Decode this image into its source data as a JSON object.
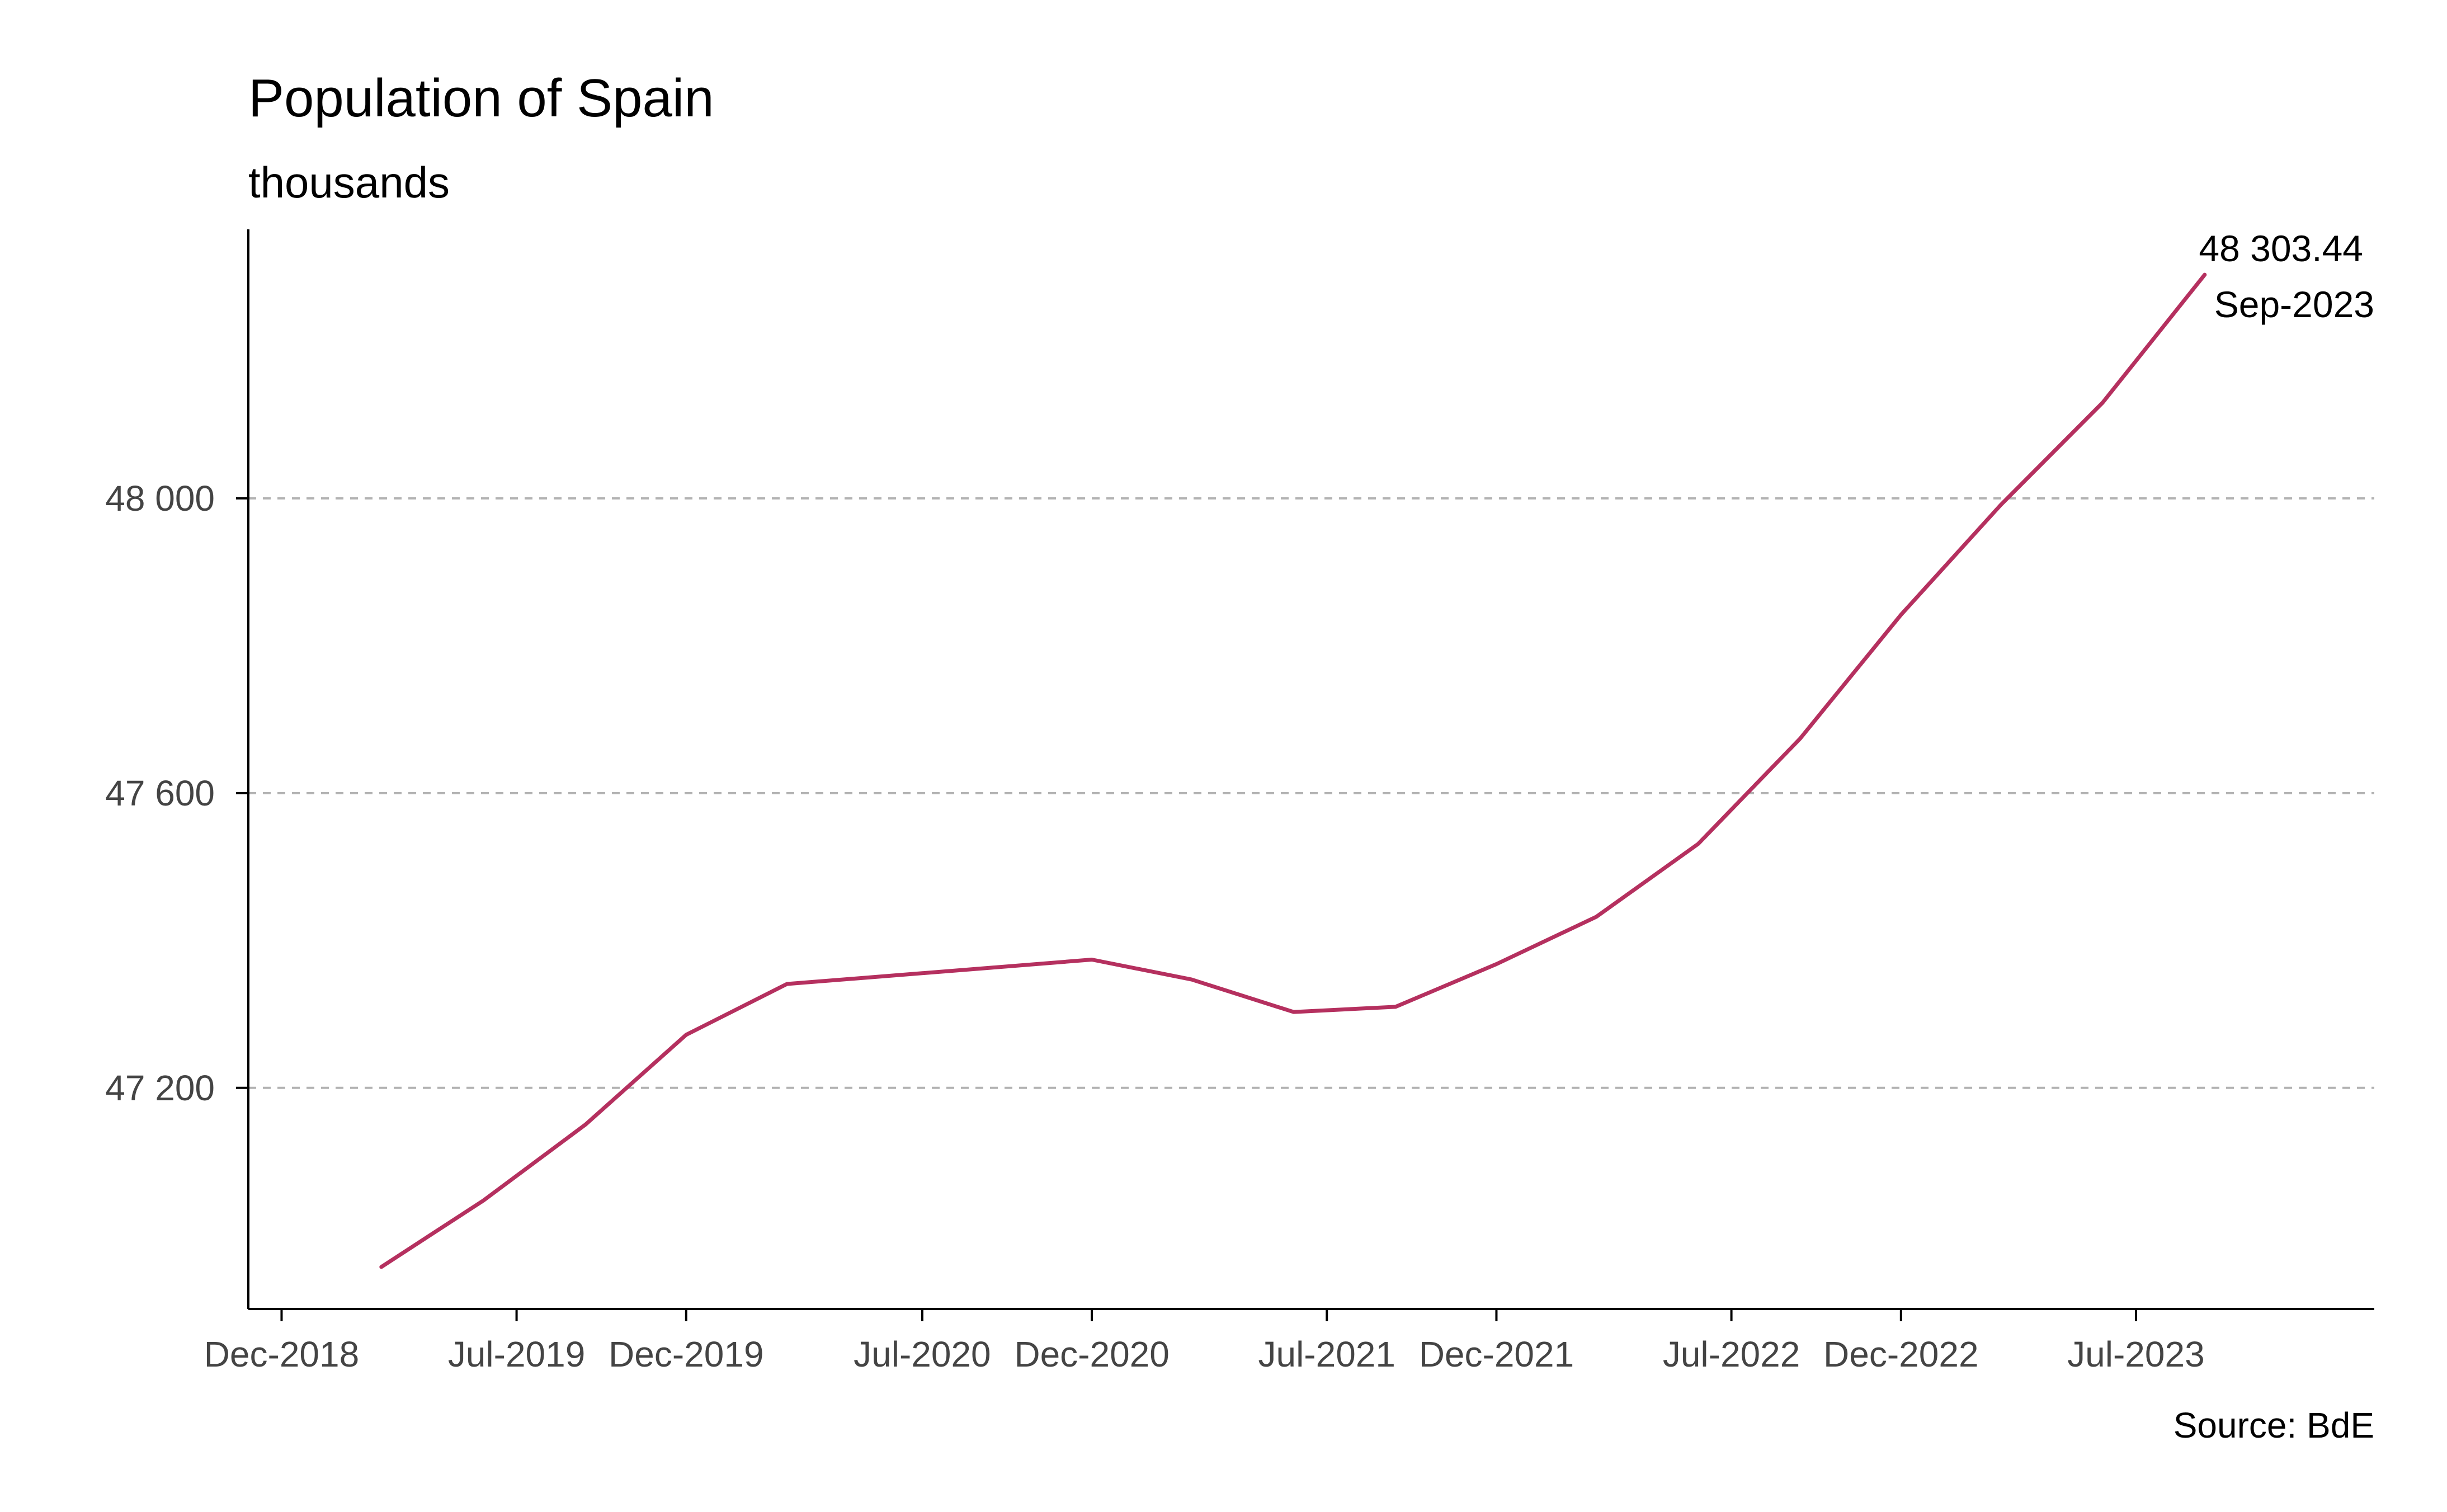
{
  "chart_data": {
    "type": "line",
    "title": "Population of Spain",
    "subtitle": "thousands",
    "source": "Source: BdE",
    "xlabel": "",
    "ylabel": "",
    "x": [
      "2019-03-01",
      "2019-06-01",
      "2019-09-01",
      "2019-12-01",
      "2020-03-01",
      "2020-06-01",
      "2020-09-01",
      "2020-12-01",
      "2021-03-01",
      "2021-06-01",
      "2021-09-01",
      "2021-12-01",
      "2022-03-01",
      "2022-06-01",
      "2022-09-01",
      "2022-12-01",
      "2023-03-01",
      "2023-06-01",
      "2023-09-01"
    ],
    "series": [
      {
        "color": "#b5305f",
        "values": [
          46957,
          47047,
          47150,
          47272,
          47341,
          47352,
          47363,
          47374,
          47347,
          47303,
          47310,
          47368,
          47432,
          47531,
          47674,
          47842,
          47991,
          48130,
          48303.44
        ]
      }
    ],
    "xticks": [
      "Dec-2018",
      "Jul-2019",
      "Dec-2019",
      "Jul-2020",
      "Dec-2020",
      "Jul-2021",
      "Dec-2021",
      "Jul-2022",
      "Dec-2022",
      "Jul-2023"
    ],
    "xtick_dates": [
      "2018-12-01",
      "2019-07-01",
      "2019-12-01",
      "2020-07-01",
      "2020-12-01",
      "2021-07-01",
      "2021-12-01",
      "2022-07-01",
      "2022-12-01",
      "2023-07-01"
    ],
    "yticks": [
      47200,
      47600,
      48000
    ],
    "ytick_labels": [
      "47 200",
      "47 600",
      "48 000"
    ],
    "xlim": [
      "2018-11-01",
      "2024-02-01"
    ],
    "ylim": [
      46900,
      48365
    ],
    "grid": "horizontal dashed",
    "annotation": {
      "value": "48 303.44",
      "date": "Sep-2023"
    },
    "colors": {
      "line": "#b5305f",
      "grid": "#b3b3b3",
      "axis": "#000000"
    }
  }
}
